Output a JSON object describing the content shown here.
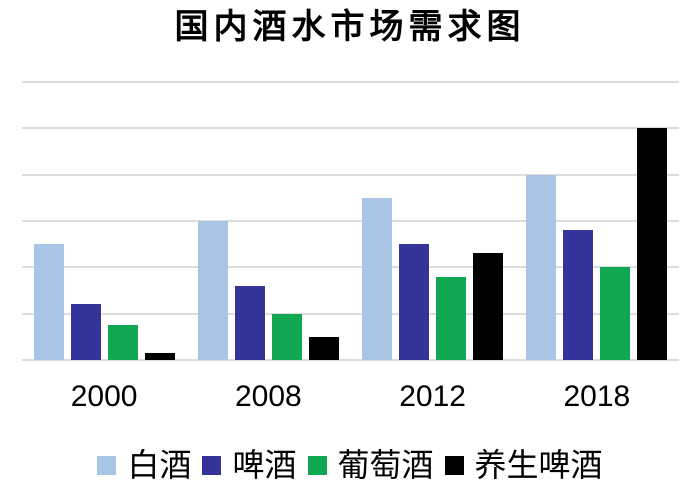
{
  "title": "国内酒水市场需求图",
  "colors": {
    "background": "#ffffff",
    "gridline": "#dcdcdc",
    "text": "#000000"
  },
  "chart_data": {
    "type": "bar",
    "title": "国内酒水市场需求图",
    "categories": [
      "2000",
      "2008",
      "2012",
      "2018"
    ],
    "series": [
      {
        "name": "白酒",
        "color": "#a8c5e5",
        "values": [
          2.5,
          3.0,
          3.5,
          4.0
        ]
      },
      {
        "name": "啤酒",
        "color": "#333399",
        "values": [
          1.2,
          1.6,
          2.5,
          2.8
        ]
      },
      {
        "name": "葡萄酒",
        "color": "#10a850",
        "values": [
          0.75,
          1.0,
          1.8,
          2.0
        ]
      },
      {
        "name": "养生啤酒",
        "color": "#000000",
        "values": [
          0.15,
          0.5,
          2.3,
          5.0
        ]
      }
    ],
    "xlabel": "",
    "ylabel": "",
    "ylim": [
      0,
      6
    ],
    "gridline_step": 1,
    "grid": true,
    "y_axis_labels_visible": false,
    "legend_position": "bottom"
  }
}
